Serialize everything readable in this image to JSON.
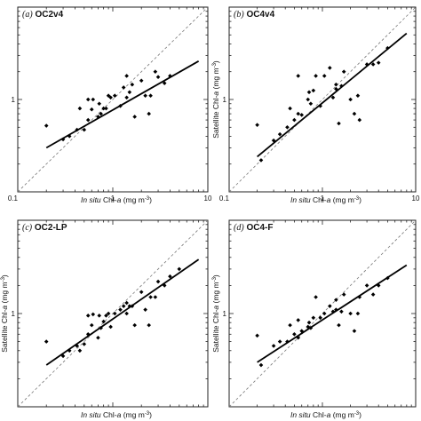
{
  "figure": {
    "y_label_main": "Satellite Chl-",
    "y_label_var": "a",
    "y_label_unit": " (mg m",
    "y_label_exp": "-3",
    "y_label_close": ")",
    "x_label_insitu": "In situ",
    "x_label_main": " Chl-",
    "x_label_var": "a",
    "x_label_unit": " (mg m",
    "x_label_exp": "-3",
    "x_label_close": ")"
  },
  "chart_data": [
    {
      "type": "scatter",
      "panel_letter": "(a)",
      "panel_code": "OC2v4",
      "show_ylabel": false,
      "show_xlabel": true,
      "x_tick_labels": [
        "0.1",
        "1",
        "10"
      ],
      "y_tick_labels": [
        "1"
      ],
      "xlim": [
        0.1,
        10
      ],
      "ylim": [
        0.1,
        10
      ],
      "log_x": true,
      "log_y": true,
      "one_to_one_line": true,
      "fit_line": {
        "x": [
          0.2,
          8
        ],
        "y": [
          0.3,
          2.6
        ]
      },
      "series": [
        {
          "x": [
            0.2,
            0.3,
            0.35,
            0.42,
            0.45,
            0.5,
            0.55,
            0.55,
            0.6,
            0.62,
            0.7,
            0.72,
            0.75,
            0.8,
            0.85,
            0.9,
            0.95,
            1.05,
            1.2,
            1.3,
            1.4,
            1.4,
            1.5,
            1.6,
            1.7,
            2.0,
            2.2,
            2.4,
            2.5,
            2.8,
            3.0,
            3.5,
            4.0
          ],
          "y": [
            0.52,
            0.37,
            0.4,
            0.47,
            0.8,
            0.47,
            0.6,
            1.0,
            0.78,
            1.0,
            0.65,
            0.9,
            0.7,
            0.8,
            0.8,
            1.1,
            1.05,
            1.1,
            0.85,
            1.35,
            1.05,
            1.8,
            1.2,
            1.45,
            0.65,
            1.6,
            1.1,
            0.7,
            1.1,
            2.0,
            1.75,
            1.5,
            1.8
          ]
        }
      ]
    },
    {
      "type": "scatter",
      "panel_letter": "(b)",
      "panel_code": "OC4v4",
      "show_ylabel": true,
      "show_xlabel": true,
      "x_tick_labels": [
        "0.1",
        "1",
        "10"
      ],
      "y_tick_labels": [
        "1"
      ],
      "xlim": [
        0.1,
        10
      ],
      "ylim": [
        0.1,
        10
      ],
      "log_x": true,
      "log_y": true,
      "one_to_one_line": true,
      "fit_line": {
        "x": [
          0.2,
          8
        ],
        "y": [
          0.24,
          5.2
        ]
      },
      "series": [
        {
          "x": [
            0.2,
            0.22,
            0.3,
            0.35,
            0.42,
            0.45,
            0.5,
            0.55,
            0.55,
            0.6,
            0.7,
            0.72,
            0.75,
            0.8,
            0.85,
            0.95,
            1.05,
            1.2,
            1.3,
            1.4,
            1.4,
            1.5,
            1.6,
            1.7,
            2.0,
            2.2,
            2.4,
            2.5,
            3.0,
            3.5,
            4.0,
            5.0
          ],
          "y": [
            0.53,
            0.22,
            0.36,
            0.42,
            0.5,
            0.8,
            0.6,
            1.8,
            0.7,
            0.68,
            1.0,
            1.2,
            0.9,
            1.25,
            1.8,
            0.85,
            1.8,
            2.2,
            1.05,
            1.45,
            1.3,
            0.55,
            1.4,
            2.0,
            1.0,
            0.7,
            1.1,
            0.6,
            2.4,
            2.4,
            2.5,
            3.6
          ]
        }
      ]
    },
    {
      "type": "scatter",
      "panel_letter": "(c)",
      "panel_code": "OC2-LP",
      "show_ylabel": true,
      "show_xlabel": true,
      "x_tick_labels": [],
      "y_tick_labels": [
        "1"
      ],
      "xlim": [
        0.1,
        10
      ],
      "ylim": [
        0.1,
        10
      ],
      "log_x": true,
      "log_y": true,
      "one_to_one_line": true,
      "fit_line": {
        "x": [
          0.2,
          8
        ],
        "y": [
          0.28,
          3.8
        ]
      },
      "series": [
        {
          "x": [
            0.2,
            0.3,
            0.35,
            0.42,
            0.45,
            0.5,
            0.55,
            0.55,
            0.6,
            0.62,
            0.7,
            0.72,
            0.75,
            0.8,
            0.85,
            0.9,
            0.95,
            1.05,
            1.2,
            1.3,
            1.4,
            1.4,
            1.5,
            1.6,
            1.7,
            2.0,
            2.2,
            2.4,
            2.5,
            2.8,
            3.0,
            3.5,
            4.0,
            5.0
          ],
          "y": [
            0.5,
            0.35,
            0.4,
            0.45,
            0.4,
            0.47,
            0.6,
            0.95,
            0.75,
            0.98,
            0.55,
            0.95,
            0.7,
            0.82,
            0.95,
            1.0,
            0.72,
            1.0,
            1.1,
            1.2,
            1.0,
            1.3,
            1.2,
            1.2,
            0.75,
            1.7,
            1.1,
            0.75,
            1.5,
            1.5,
            2.2,
            2.0,
            2.5,
            3.0
          ]
        }
      ]
    },
    {
      "type": "scatter",
      "panel_letter": "(d)",
      "panel_code": "OC4-F",
      "show_ylabel": true,
      "show_xlabel": true,
      "x_tick_labels": [],
      "y_tick_labels": [
        "1"
      ],
      "xlim": [
        0.1,
        10
      ],
      "ylim": [
        0.1,
        10
      ],
      "log_x": true,
      "log_y": true,
      "one_to_one_line": true,
      "fit_line": {
        "x": [
          0.2,
          8
        ],
        "y": [
          0.3,
          3.3
        ]
      },
      "series": [
        {
          "x": [
            0.2,
            0.22,
            0.3,
            0.35,
            0.42,
            0.45,
            0.5,
            0.55,
            0.55,
            0.6,
            0.7,
            0.72,
            0.75,
            0.8,
            0.85,
            0.95,
            1.05,
            1.2,
            1.3,
            1.4,
            1.4,
            1.5,
            1.6,
            1.7,
            2.0,
            2.2,
            2.4,
            2.5,
            3.0,
            3.5,
            4.0,
            5.0
          ],
          "y": [
            0.58,
            0.28,
            0.45,
            0.5,
            0.5,
            0.75,
            0.6,
            0.55,
            0.85,
            0.65,
            0.72,
            0.8,
            0.7,
            0.9,
            1.5,
            0.9,
            1.0,
            1.2,
            1.05,
            1.4,
            1.1,
            0.75,
            1.05,
            1.6,
            1.0,
            0.65,
            1.0,
            1.5,
            2.0,
            1.6,
            2.0,
            2.4
          ]
        }
      ]
    }
  ]
}
